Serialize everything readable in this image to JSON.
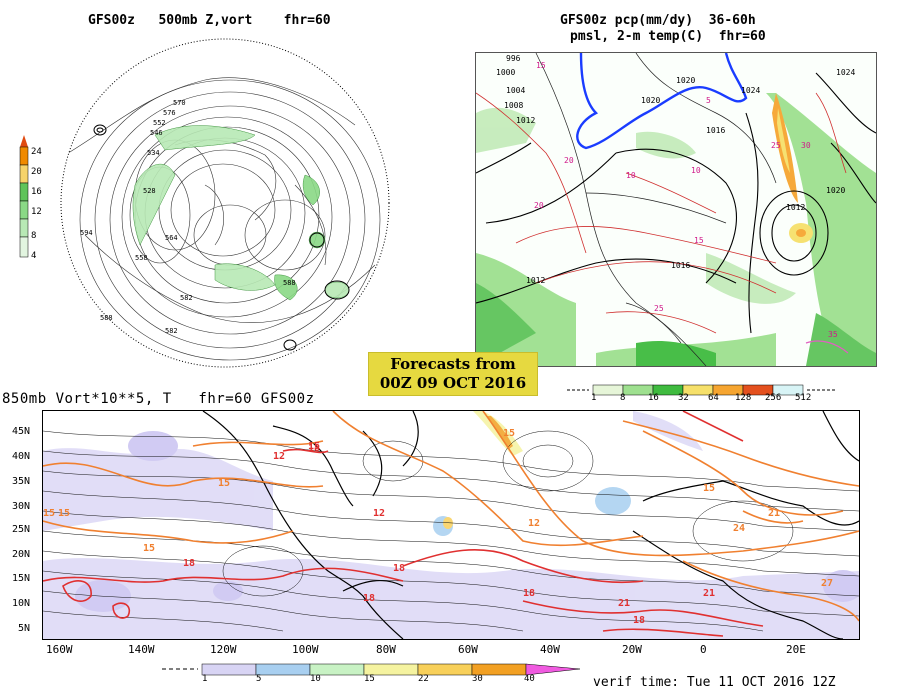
{
  "panel_500mb": {
    "title": "GFS00z   500mb Z,vort    fhr=60",
    "colorbar_labels": [
      "24",
      "20",
      "16",
      "12",
      "8",
      "4"
    ],
    "colorbar_colors": [
      "#f08a00",
      "#f6d36a",
      "#5fc45a",
      "#8ad986",
      "#b8e9b5",
      "#e2f5e0"
    ],
    "height_labels": [
      "552",
      "570",
      "546",
      "534",
      "528",
      "564",
      "594",
      "588",
      "558",
      "576",
      "582",
      "582",
      "588"
    ]
  },
  "panel_precip": {
    "title_line1": "GFS00z pcp(mm/dy)  36-60h",
    "title_line2": "pmsl, 2-m temp(C)  fhr=60",
    "pressure_labels": [
      "1020",
      "1024",
      "1016",
      "1012",
      "1008",
      "1004",
      "1000",
      "996",
      "1020",
      "1016",
      "1012",
      "1012",
      "1024",
      "1020"
    ],
    "temp_labels": [
      "15",
      "10",
      "20",
      "25",
      "30",
      "5",
      "10",
      "25",
      "20",
      "15",
      "35"
    ],
    "colorbar_labels": [
      "1",
      "8",
      "16",
      "32",
      "64",
      "128",
      "256",
      "512"
    ],
    "colorbar_colors": [
      "#e6f5d8",
      "#9ee08f",
      "#3fbb3f",
      "#f6e06a",
      "#f6a530",
      "#e4501e",
      "#d8f4f6"
    ]
  },
  "forecast_box": {
    "line1": "Forecasts from",
    "line2": "00Z 09 OCT 2016"
  },
  "panel_850mb": {
    "title": "850mb Vort*10**5, T   fhr=60 GFS00z",
    "lat_labels": [
      "45N",
      "40N",
      "35N",
      "30N",
      "25N",
      "20N",
      "15N",
      "10N",
      "5N"
    ],
    "lon_labels": [
      "160W",
      "140W",
      "120W",
      "100W",
      "80W",
      "60W",
      "40W",
      "20W",
      "0",
      "20E"
    ],
    "temp_labels": [
      "15",
      "15",
      "18",
      "12",
      "15",
      "15",
      "21",
      "18",
      "18",
      "18",
      "15",
      "21",
      "24",
      "27",
      "21",
      "18",
      "15",
      "12",
      "18",
      "15",
      "12"
    ],
    "colorbar_labels": [
      "1",
      "5",
      "10",
      "15",
      "22",
      "30",
      "40"
    ],
    "colorbar_colors": [
      "#d8d4f4",
      "#a8cff0",
      "#c8f2c4",
      "#f5f3a0",
      "#f8d05a",
      "#f2a023",
      "#f05ae0"
    ]
  },
  "verif_time": "verif time: Tue 11 OCT 2016 12Z"
}
